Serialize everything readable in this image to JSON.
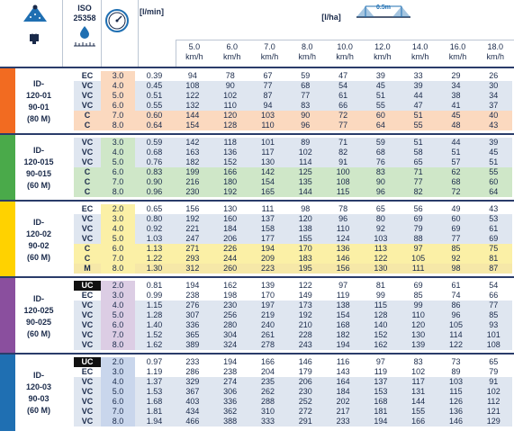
{
  "header": {
    "iso_line1": "ISO",
    "iso_line2": "25358",
    "flow_unit": "[l/min]",
    "area_unit": "[l/ha]",
    "boom_height": "0.5m",
    "pressure_label": "( )",
    "speeds": [
      {
        "value": "5.0",
        "unit": "km/h"
      },
      {
        "value": "6.0",
        "unit": "km/h"
      },
      {
        "value": "7.0",
        "unit": "km/h"
      },
      {
        "value": "8.0",
        "unit": "km/h"
      },
      {
        "value": "10.0",
        "unit": "km/h"
      },
      {
        "value": "12.0",
        "unit": "km/h"
      },
      {
        "value": "14.0",
        "unit": "km/h"
      },
      {
        "value": "16.0",
        "unit": "km/h"
      },
      {
        "value": "18.0",
        "unit": "km/h"
      }
    ]
  },
  "colors": {
    "ec_row": "#ffffff",
    "vc_row": "#dfe6f0",
    "m_row": "#f6e8a8",
    "row_tints": {
      "orange": "#fbd9bf",
      "green": "#cfe7c8",
      "yellow": "#fbf0a6",
      "purple": "#dccde4",
      "blue": "#c9d6ec"
    },
    "stripes": [
      "#f26b21",
      "#4aaa4a",
      "#ffd200",
      "#8a4f9e",
      "#1f6fb2"
    ]
  },
  "groups": [
    {
      "name_lines": [
        "ID-",
        "120-01",
        "90-01",
        "(80 M)"
      ],
      "stripe": "#f26b21",
      "tint": "#fbd9bf",
      "rows": [
        {
          "cls": "EC",
          "p": "3.0",
          "q": "0.39",
          "v": [
            "94",
            "78",
            "67",
            "59",
            "47",
            "39",
            "33",
            "29",
            "26"
          ]
        },
        {
          "cls": "VC",
          "p": "4.0",
          "q": "0.45",
          "v": [
            "108",
            "90",
            "77",
            "68",
            "54",
            "45",
            "39",
            "34",
            "30"
          ]
        },
        {
          "cls": "VC",
          "p": "5.0",
          "q": "0.51",
          "v": [
            "122",
            "102",
            "87",
            "77",
            "61",
            "51",
            "44",
            "38",
            "34"
          ]
        },
        {
          "cls": "VC",
          "p": "6.0",
          "q": "0.55",
          "v": [
            "132",
            "110",
            "94",
            "83",
            "66",
            "55",
            "47",
            "41",
            "37"
          ]
        },
        {
          "cls": "C",
          "p": "7.0",
          "q": "0.60",
          "v": [
            "144",
            "120",
            "103",
            "90",
            "72",
            "60",
            "51",
            "45",
            "40"
          ]
        },
        {
          "cls": "C",
          "p": "8.0",
          "q": "0.64",
          "v": [
            "154",
            "128",
            "110",
            "96",
            "77",
            "64",
            "55",
            "48",
            "43"
          ]
        }
      ]
    },
    {
      "name_lines": [
        "ID-",
        "120-015",
        "90-015",
        "(60 M)"
      ],
      "stripe": "#4aaa4a",
      "tint": "#cfe7c8",
      "rows": [
        {
          "cls": "VC",
          "p": "3.0",
          "q": "0.59",
          "v": [
            "142",
            "118",
            "101",
            "89",
            "71",
            "59",
            "51",
            "44",
            "39"
          ]
        },
        {
          "cls": "VC",
          "p": "4.0",
          "q": "0.68",
          "v": [
            "163",
            "136",
            "117",
            "102",
            "82",
            "68",
            "58",
            "51",
            "45"
          ]
        },
        {
          "cls": "VC",
          "p": "5.0",
          "q": "0.76",
          "v": [
            "182",
            "152",
            "130",
            "114",
            "91",
            "76",
            "65",
            "57",
            "51"
          ]
        },
        {
          "cls": "C",
          "p": "6.0",
          "q": "0.83",
          "v": [
            "199",
            "166",
            "142",
            "125",
            "100",
            "83",
            "71",
            "62",
            "55"
          ]
        },
        {
          "cls": "C",
          "p": "7.0",
          "q": "0.90",
          "v": [
            "216",
            "180",
            "154",
            "135",
            "108",
            "90",
            "77",
            "68",
            "60"
          ]
        },
        {
          "cls": "C",
          "p": "8.0",
          "q": "0.96",
          "v": [
            "230",
            "192",
            "165",
            "144",
            "115",
            "96",
            "82",
            "72",
            "64"
          ]
        }
      ]
    },
    {
      "name_lines": [
        "ID-",
        "120-02",
        "90-02",
        "(60 M)"
      ],
      "stripe": "#ffd200",
      "tint": "#fbf0a6",
      "rows": [
        {
          "cls": "EC",
          "p": "2.0",
          "q": "0.65",
          "v": [
            "156",
            "130",
            "111",
            "98",
            "78",
            "65",
            "56",
            "49",
            "43"
          ]
        },
        {
          "cls": "VC",
          "p": "3.0",
          "q": "0.80",
          "v": [
            "192",
            "160",
            "137",
            "120",
            "96",
            "80",
            "69",
            "60",
            "53"
          ]
        },
        {
          "cls": "VC",
          "p": "4.0",
          "q": "0.92",
          "v": [
            "221",
            "184",
            "158",
            "138",
            "110",
            "92",
            "79",
            "69",
            "61"
          ]
        },
        {
          "cls": "VC",
          "p": "5.0",
          "q": "1.03",
          "v": [
            "247",
            "206",
            "177",
            "155",
            "124",
            "103",
            "88",
            "77",
            "69"
          ]
        },
        {
          "cls": "C",
          "p": "6.0",
          "q": "1.13",
          "v": [
            "271",
            "226",
            "194",
            "170",
            "136",
            "113",
            "97",
            "85",
            "75"
          ]
        },
        {
          "cls": "C",
          "p": "7.0",
          "q": "1.22",
          "v": [
            "293",
            "244",
            "209",
            "183",
            "146",
            "122",
            "105",
            "92",
            "81"
          ]
        },
        {
          "cls": "M",
          "p": "8.0",
          "q": "1.30",
          "v": [
            "312",
            "260",
            "223",
            "195",
            "156",
            "130",
            "111",
            "98",
            "87"
          ]
        }
      ]
    },
    {
      "name_lines": [
        "ID-",
        "120-025",
        "90-025",
        "(60 M)"
      ],
      "stripe": "#8a4f9e",
      "tint": "#dccde4",
      "rows": [
        {
          "cls": "UC",
          "p": "2.0",
          "q": "0.81",
          "v": [
            "194",
            "162",
            "139",
            "122",
            "97",
            "81",
            "69",
            "61",
            "54"
          ]
        },
        {
          "cls": "EC",
          "p": "3.0",
          "q": "0.99",
          "v": [
            "238",
            "198",
            "170",
            "149",
            "119",
            "99",
            "85",
            "74",
            "66"
          ]
        },
        {
          "cls": "VC",
          "p": "4.0",
          "q": "1.15",
          "v": [
            "276",
            "230",
            "197",
            "173",
            "138",
            "115",
            "99",
            "86",
            "77"
          ]
        },
        {
          "cls": "VC",
          "p": "5.0",
          "q": "1.28",
          "v": [
            "307",
            "256",
            "219",
            "192",
            "154",
            "128",
            "110",
            "96",
            "85"
          ]
        },
        {
          "cls": "VC",
          "p": "6.0",
          "q": "1.40",
          "v": [
            "336",
            "280",
            "240",
            "210",
            "168",
            "140",
            "120",
            "105",
            "93"
          ]
        },
        {
          "cls": "VC",
          "p": "7.0",
          "q": "1.52",
          "v": [
            "365",
            "304",
            "261",
            "228",
            "182",
            "152",
            "130",
            "114",
            "101"
          ]
        },
        {
          "cls": "VC",
          "p": "8.0",
          "q": "1.62",
          "v": [
            "389",
            "324",
            "278",
            "243",
            "194",
            "162",
            "139",
            "122",
            "108"
          ]
        }
      ]
    },
    {
      "name_lines": [
        "ID-",
        "120-03",
        "90-03",
        "(60 M)"
      ],
      "stripe": "#1f6fb2",
      "tint": "#c9d6ec",
      "rows": [
        {
          "cls": "UC",
          "p": "2.0",
          "q": "0.97",
          "v": [
            "233",
            "194",
            "166",
            "146",
            "116",
            "97",
            "83",
            "73",
            "65"
          ]
        },
        {
          "cls": "EC",
          "p": "3.0",
          "q": "1.19",
          "v": [
            "286",
            "238",
            "204",
            "179",
            "143",
            "119",
            "102",
            "89",
            "79"
          ]
        },
        {
          "cls": "VC",
          "p": "4.0",
          "q": "1.37",
          "v": [
            "329",
            "274",
            "235",
            "206",
            "164",
            "137",
            "117",
            "103",
            "91"
          ]
        },
        {
          "cls": "VC",
          "p": "5.0",
          "q": "1.53",
          "v": [
            "367",
            "306",
            "262",
            "230",
            "184",
            "153",
            "131",
            "115",
            "102"
          ]
        },
        {
          "cls": "VC",
          "p": "6.0",
          "q": "1.68",
          "v": [
            "403",
            "336",
            "288",
            "252",
            "202",
            "168",
            "144",
            "126",
            "112"
          ]
        },
        {
          "cls": "VC",
          "p": "7.0",
          "q": "1.81",
          "v": [
            "434",
            "362",
            "310",
            "272",
            "217",
            "181",
            "155",
            "136",
            "121"
          ]
        },
        {
          "cls": "VC",
          "p": "8.0",
          "q": "1.94",
          "v": [
            "466",
            "388",
            "333",
            "291",
            "233",
            "194",
            "166",
            "146",
            "129"
          ]
        }
      ]
    }
  ]
}
